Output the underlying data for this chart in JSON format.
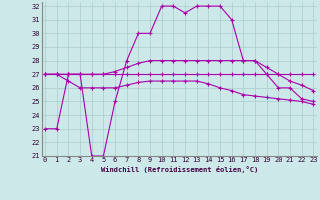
{
  "xlabel": "Windchill (Refroidissement éolien,°C)",
  "bg_color": "#cce8e8",
  "grid_color": "#aacccc",
  "line_color": "#aa00aa",
  "x_min": 0,
  "x_max": 23,
  "y_min": 21,
  "y_max": 32,
  "series": [
    [
      23,
      23,
      27,
      27,
      21,
      21,
      25,
      28,
      30,
      30,
      32,
      32,
      31.5,
      32,
      32,
      32,
      31,
      28,
      28,
      27,
      26,
      26,
      25.2,
      25
    ],
    [
      27,
      27,
      27,
      27,
      27,
      27,
      27,
      27,
      27,
      27,
      27,
      27,
      27,
      27,
      27,
      27,
      27,
      27,
      27,
      27,
      27,
      27,
      27,
      27
    ],
    [
      27,
      27,
      27,
      27,
      27,
      27,
      27.2,
      27.5,
      27.8,
      28,
      28,
      28,
      28,
      28,
      28,
      28,
      28,
      28,
      28,
      27.5,
      27,
      26.5,
      26.2,
      25.8
    ],
    [
      27,
      27,
      26.5,
      26,
      26,
      26,
      26,
      26.2,
      26.4,
      26.5,
      26.5,
      26.5,
      26.5,
      26.5,
      26.3,
      26,
      25.8,
      25.5,
      25.4,
      25.3,
      25.2,
      25.1,
      25.0,
      24.8
    ]
  ],
  "tick_fontsize": 5,
  "xlabel_fontsize": 5,
  "figsize": [
    3.2,
    2.0
  ],
  "dpi": 100
}
